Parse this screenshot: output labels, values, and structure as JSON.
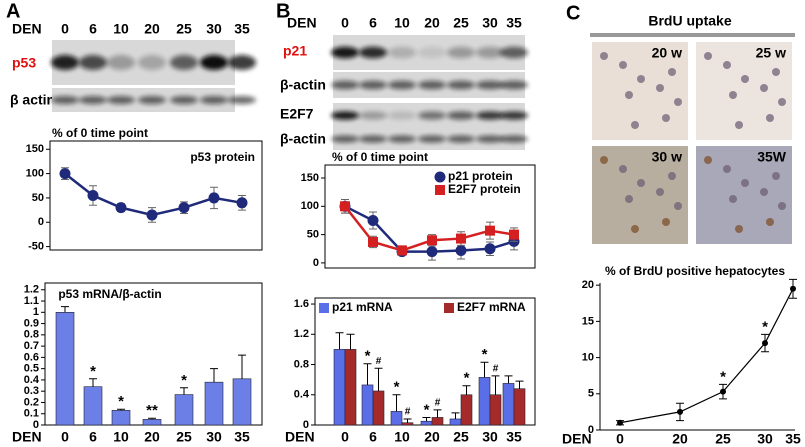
{
  "figure": {
    "panel_labels": [
      "A",
      "B",
      "C"
    ],
    "blots_a": {
      "lane_label": "DEN",
      "lanes": [
        "0",
        "6",
        "10",
        "20",
        "25",
        "30",
        "35"
      ],
      "rows": [
        "p53",
        "β actin"
      ]
    },
    "blots_b": {
      "lane_label": "DEN",
      "lanes": [
        "0",
        "6",
        "10",
        "20",
        "25",
        "30",
        "35"
      ],
      "rows": [
        "p21",
        "β-actin",
        "E2F7",
        "β-actin"
      ]
    },
    "brdu": {
      "title": "BrdU uptake",
      "images": [
        "20 w",
        "25 w",
        "30 w",
        "35W"
      ]
    }
  },
  "chart_data": [
    {
      "type": "line",
      "title": "% of 0 time point",
      "ylim": [
        -57,
        167
      ],
      "yticks": [
        -50,
        0,
        50,
        100,
        150
      ],
      "series": [
        {
          "name": "p53 protein",
          "color": "#1f2a7a",
          "marker": "circle",
          "values": [
            100,
            55,
            30,
            15,
            30,
            50,
            40
          ],
          "errors": [
            12,
            20,
            8,
            15,
            12,
            22,
            15
          ]
        }
      ]
    },
    {
      "type": "bar",
      "title": "p53 mRNA/β-actin",
      "xlabel": "DEN",
      "categories": [
        "0",
        "6",
        "10",
        "20",
        "25",
        "30",
        "35"
      ],
      "ylim": [
        0,
        1.26
      ],
      "yticks": [
        0,
        0.1,
        0.2,
        0.3,
        0.4,
        0.5,
        0.6,
        0.7,
        0.8,
        0.9,
        1,
        1.1,
        1.2
      ],
      "series": [
        {
          "color": "#6b7fe6",
          "values": [
            1.0,
            0.34,
            0.13,
            0.05,
            0.27,
            0.38,
            0.41
          ],
          "errors": [
            0.05,
            0.07,
            0.01,
            0.01,
            0.06,
            0.12,
            0.21
          ],
          "annotations": [
            null,
            "*",
            "*",
            "**",
            "*",
            null,
            null
          ]
        }
      ]
    },
    {
      "type": "line",
      "title": "% of 0 time point",
      "ylim": [
        -9,
        173
      ],
      "yticks": [
        0,
        50,
        100,
        150
      ],
      "series": [
        {
          "name": "p21 protein",
          "color": "#1f2a7a",
          "marker": "circle",
          "values": [
            100,
            75,
            20,
            20,
            22,
            25,
            38
          ],
          "errors": [
            12,
            15,
            5,
            15,
            15,
            12,
            15
          ]
        },
        {
          "name": "E2F7 protein",
          "color": "#d42020",
          "marker": "square",
          "values": [
            100,
            37,
            22,
            40,
            43,
            57,
            50
          ],
          "errors": [
            12,
            10,
            8,
            10,
            12,
            15,
            12
          ]
        }
      ]
    },
    {
      "type": "bar",
      "xlabel": "DEN",
      "categories": [
        "0",
        "6",
        "10",
        "20",
        "25",
        "30",
        "35"
      ],
      "ylim": [
        0,
        1.68
      ],
      "yticks": [
        0,
        0.4,
        0.8,
        1.2,
        1.6
      ],
      "series": [
        {
          "name": "p21 mRNA",
          "color": "#5a6ee8",
          "values": [
            1.0,
            0.53,
            0.18,
            0.05,
            0.08,
            0.63,
            0.55
          ],
          "errors": [
            0.22,
            0.28,
            0.22,
            0.05,
            0.08,
            0.2,
            0.1
          ],
          "annotations": [
            null,
            "*",
            "*",
            "*",
            null,
            "*",
            null
          ]
        },
        {
          "name": "E2F7 mRNA",
          "color": "#a52a2a",
          "values": [
            1.0,
            0.45,
            0.03,
            0.1,
            0.4,
            0.4,
            0.48
          ],
          "errors": [
            0.2,
            0.3,
            0.05,
            0.1,
            0.12,
            0.25,
            0.1
          ],
          "annotations": [
            null,
            "#",
            "#",
            "#",
            "*",
            "#",
            null
          ]
        }
      ]
    },
    {
      "type": "line",
      "title": "% of BrdU positive hepatocytes",
      "xlabel": "DEN",
      "categories": [
        "0",
        "20",
        "25",
        "30",
        "35"
      ],
      "ylim": [
        0,
        20.3
      ],
      "yticks": [
        0,
        5,
        10,
        15,
        20
      ],
      "series": [
        {
          "color": "#000000",
          "marker": "circle",
          "values": [
            1,
            2.5,
            5.3,
            12,
            19.5
          ],
          "errors": [
            0.3,
            1.2,
            1,
            1.2,
            1.3
          ],
          "annotations": [
            null,
            null,
            "*",
            "*",
            null
          ]
        }
      ]
    }
  ]
}
